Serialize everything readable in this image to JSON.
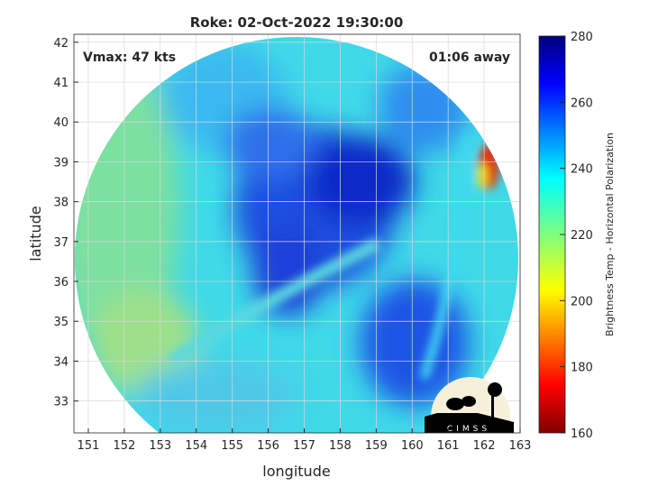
{
  "chart_data": {
    "type": "heatmap",
    "title": "Roke: 02-Oct-2022 19:30:00",
    "xlabel": "longitude",
    "ylabel": "latitude",
    "xlim": [
      150.6,
      163.0
    ],
    "ylim": [
      32.2,
      42.2
    ],
    "xticks": [
      "151",
      "152",
      "153",
      "154",
      "155",
      "156",
      "157",
      "158",
      "159",
      "160",
      "161",
      "162",
      "163"
    ],
    "yticks": [
      "33",
      "34",
      "35",
      "36",
      "37",
      "38",
      "39",
      "40",
      "41",
      "42"
    ],
    "grid": true,
    "annotations": {
      "vmax": "Vmax: 47 kts",
      "time_offset": "01:06 away"
    },
    "colorbar": {
      "label": "Brightness Temp - Horizontal Polarization",
      "range": [
        160,
        280
      ],
      "ticks": [
        "160",
        "180",
        "200",
        "220",
        "240",
        "260",
        "280"
      ],
      "colormap": "jet"
    },
    "features": {
      "storm_center_lon": 157.8,
      "storm_center_lat": 37.4,
      "min_region_temp": 175
    }
  },
  "logo": "CIMSS"
}
